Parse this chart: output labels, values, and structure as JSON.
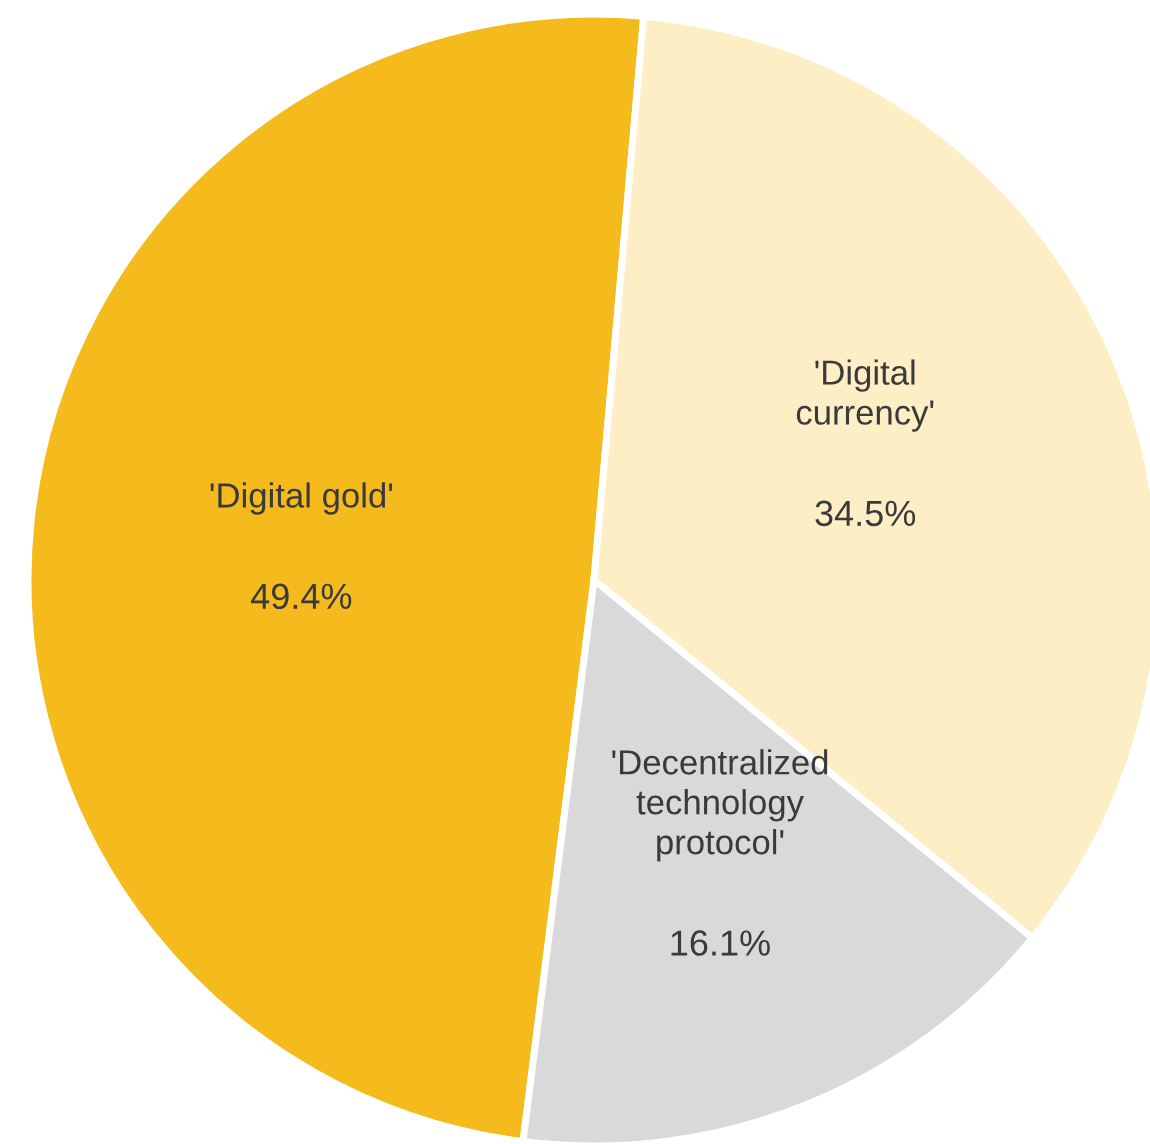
{
  "chart_data": {
    "type": "pie",
    "categories": [
      "'Digital gold'",
      "'Digital currency'",
      "'Decentralized technology protocol'"
    ],
    "values": [
      49.4,
      34.5,
      16.1
    ],
    "value_labels": [
      "49.4%",
      "34.5%",
      "16.1%"
    ],
    "colors": [
      "#f5bb1c",
      "#fdeec6",
      "#d9d9d9"
    ],
    "legend": false
  }
}
